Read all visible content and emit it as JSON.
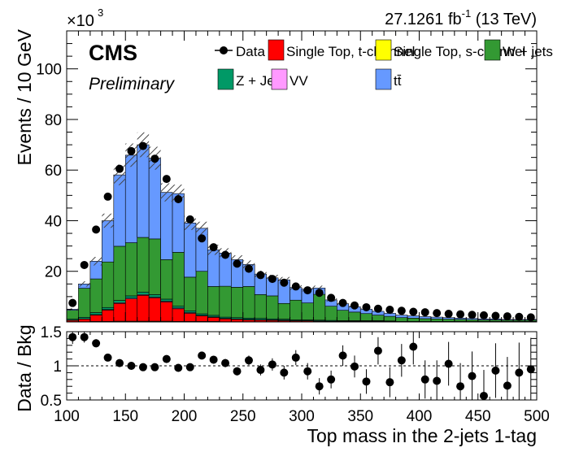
{
  "header": {
    "lumi": "27.1261 fb",
    "lumi_exp": "-1",
    "energy": " (13 TeV)",
    "experiment": "CMS",
    "status": "Preliminary",
    "exponent_base": "×10",
    "exponent_power": "3"
  },
  "legend": [
    {
      "key": "data",
      "label": "Data",
      "marker": "dot",
      "color": "#000000"
    },
    {
      "key": "stop_t",
      "label": "Single Top, t-channel",
      "marker": "box",
      "color": "#ff0000"
    },
    {
      "key": "stop_s",
      "label": "Single Top, s-channel",
      "marker": "box",
      "color": "#ffff00"
    },
    {
      "key": "wjets",
      "label": "W + jets",
      "marker": "box",
      "color": "#339933"
    },
    {
      "key": "zjets",
      "label": "Z + Jets",
      "marker": "box",
      "color": "#009966"
    },
    {
      "key": "vv",
      "label": "VV",
      "marker": "box",
      "color": "#ff99ff"
    },
    {
      "key": "ttbar",
      "label": "tt̄",
      "marker": "box",
      "color": "#6699ff"
    }
  ],
  "chart_data": [
    {
      "type": "bar",
      "stacked": true,
      "xlabel": "Top mass in the 2-jets 1-tag",
      "ylabel": "Events / 10 GeV",
      "xlim": [
        100,
        500
      ],
      "ylim": [
        0,
        115
      ],
      "y_scale_note": "×10^3",
      "x_edges": [
        100,
        110,
        120,
        130,
        140,
        150,
        160,
        170,
        180,
        190,
        200,
        210,
        220,
        230,
        240,
        250,
        260,
        270,
        280,
        290,
        300,
        310,
        320,
        330,
        340,
        350,
        360,
        370,
        380,
        390,
        400,
        410,
        420,
        430,
        440,
        450,
        460,
        470,
        480,
        490,
        500
      ],
      "x_ticks": [
        100,
        150,
        200,
        250,
        300,
        350,
        400,
        450,
        500
      ],
      "y_ticks": [
        20,
        40,
        60,
        80,
        100
      ],
      "series": [
        {
          "key": "stop_s",
          "color": "#ffff00",
          "values": [
            0.1,
            0.1,
            0.2,
            0.2,
            0.3,
            0.3,
            0.3,
            0.3,
            0.3,
            0.2,
            0.2,
            0.2,
            0.2,
            0.1,
            0.1,
            0.1,
            0.1,
            0.1,
            0.1,
            0.1,
            0.1,
            0,
            0,
            0,
            0,
            0,
            0,
            0,
            0,
            0,
            0,
            0,
            0,
            0,
            0,
            0,
            0,
            0,
            0,
            0
          ]
        },
        {
          "key": "stop_t",
          "color": "#ff0000",
          "values": [
            0.5,
            1.0,
            2.5,
            4.5,
            7.0,
            8.8,
            10.2,
            9.2,
            7.6,
            5.0,
            3.2,
            2.2,
            1.6,
            1.1,
            0.9,
            0.7,
            0.6,
            0.5,
            0.4,
            0.3,
            0.3,
            0.3,
            0.2,
            0.2,
            0.2,
            0.2,
            0.2,
            0.1,
            0.1,
            0.1,
            0.1,
            0.1,
            0.1,
            0.1,
            0.1,
            0.1,
            0.1,
            0.1,
            0.1,
            0.1
          ]
        },
        {
          "key": "vv",
          "color": "#ff99ff",
          "values": [
            0.1,
            0.1,
            0.2,
            0.2,
            0.3,
            0.3,
            0.3,
            0.3,
            0.3,
            0.3,
            0.3,
            0.2,
            0.2,
            0.2,
            0.2,
            0.2,
            0.2,
            0.2,
            0.2,
            0.1,
            0.1,
            0.1,
            0.1,
            0.1,
            0.1,
            0.1,
            0.1,
            0.1,
            0,
            0,
            0,
            0,
            0,
            0,
            0,
            0,
            0,
            0,
            0,
            0
          ]
        },
        {
          "key": "zjets",
          "color": "#009966",
          "values": [
            0.4,
            0.6,
            0.8,
            0.8,
            0.9,
            0.9,
            1.0,
            1.0,
            0.8,
            0.7,
            0.7,
            0.6,
            0.6,
            0.5,
            0.5,
            0.5,
            0.5,
            0.4,
            0.4,
            0.3,
            0.3,
            0.3,
            0.3,
            0.2,
            0.2,
            0.2,
            0.2,
            0.2,
            0.1,
            0.1,
            0.1,
            0.1,
            0.1,
            0.1,
            0.1,
            0.1,
            0.1,
            0.1,
            0.1,
            0.1
          ]
        },
        {
          "key": "wjets",
          "color": "#339933",
          "values": [
            3.5,
            11.5,
            13.3,
            18.0,
            21.4,
            21.0,
            21.6,
            22.0,
            15.6,
            21.3,
            13.3,
            16.8,
            11.4,
            12.2,
            12.0,
            12.5,
            9.4,
            9.1,
            6.2,
            7.8,
            6.7,
            10.2,
            5.6,
            4.1,
            3.4,
            2.8,
            2.2,
            1.8,
            1.5,
            1.3,
            1.1,
            1.0,
            0.9,
            0.8,
            0.7,
            0.6,
            0.6,
            0.5,
            0.5,
            0.5
          ]
        },
        {
          "key": "ttbar",
          "color": "#6699ff",
          "values": [
            0.4,
            1.7,
            7.0,
            16.3,
            28.2,
            34.6,
            36.6,
            31.9,
            26.6,
            23.2,
            21.4,
            17.0,
            14.5,
            13.1,
            10.9,
            8.7,
            8.1,
            7.1,
            9.3,
            5.0,
            5.5,
            2.5,
            2.5,
            2.6,
            2.1,
            1.7,
            1.5,
            1.2,
            1.0,
            0.9,
            0.8,
            0.7,
            0.6,
            0.5,
            0.5,
            0.4,
            0.4,
            0.3,
            0.3,
            0.3
          ]
        }
      ],
      "mc_uncertainty_fraction": 0.07,
      "data_points": {
        "x": [
          105,
          115,
          125,
          135,
          145,
          155,
          165,
          175,
          185,
          195,
          205,
          215,
          225,
          235,
          245,
          255,
          265,
          275,
          285,
          295,
          305,
          315,
          325,
          335,
          345,
          355,
          365,
          375,
          385,
          395,
          405,
          415,
          425,
          435,
          445,
          455,
          465,
          475,
          485,
          495
        ],
        "y": [
          7.5,
          22.5,
          36.5,
          49.5,
          60.5,
          67.5,
          69.5,
          64.5,
          56.5,
          48.5,
          40.5,
          33,
          29.5,
          26.5,
          23,
          21,
          18.5,
          17,
          15.5,
          14,
          12.5,
          11.5,
          9.5,
          7.5,
          6.5,
          5.8,
          5.2,
          4.8,
          4.4,
          4.0,
          3.8,
          3.5,
          3.2,
          3.0,
          2.8,
          2.6,
          2.4,
          2.2,
          2.0,
          1.8
        ]
      }
    },
    {
      "type": "scatter",
      "xlabel": "Top mass in the 2-jets 1-tag",
      "ylabel": "Data / Bkg",
      "xlim": [
        100,
        500
      ],
      "ylim": [
        0.5,
        1.5
      ],
      "y_ticks": [
        0.5,
        1,
        1.5
      ],
      "x_ticks": [
        100,
        150,
        200,
        250,
        300,
        350,
        400,
        450,
        500
      ],
      "reference_line": 1,
      "x": [
        105,
        115,
        125,
        135,
        145,
        155,
        165,
        175,
        185,
        195,
        205,
        215,
        225,
        235,
        245,
        255,
        265,
        275,
        285,
        295,
        305,
        315,
        325,
        335,
        345,
        355,
        365,
        375,
        385,
        395,
        405,
        415,
        425,
        435,
        445,
        455,
        465,
        475,
        485,
        495
      ],
      "y": [
        1.42,
        1.42,
        1.33,
        1.12,
        1.04,
        1.0,
        0.98,
        0.98,
        1.1,
        0.97,
        0.98,
        1.15,
        1.09,
        1.04,
        0.92,
        1.08,
        0.94,
        1.02,
        0.9,
        1.12,
        0.92,
        0.7,
        0.8,
        1.15,
        0.99,
        0.77,
        1.22,
        0.76,
        1.08,
        1.28,
        0.8,
        0.78,
        1.03,
        0.7,
        0.85,
        0.56,
        0.93,
        0.71,
        0.9,
        0.95
      ],
      "yerr": [
        0.1,
        0.08,
        0.06,
        0.05,
        0.04,
        0.03,
        0.03,
        0.03,
        0.04,
        0.04,
        0.04,
        0.05,
        0.05,
        0.06,
        0.06,
        0.07,
        0.08,
        0.09,
        0.1,
        0.11,
        0.12,
        0.12,
        0.13,
        0.15,
        0.16,
        0.18,
        0.2,
        0.22,
        0.24,
        0.26,
        0.28,
        0.3,
        0.32,
        0.34,
        0.36,
        0.38,
        0.4,
        0.42,
        0.44,
        0.46
      ]
    }
  ]
}
